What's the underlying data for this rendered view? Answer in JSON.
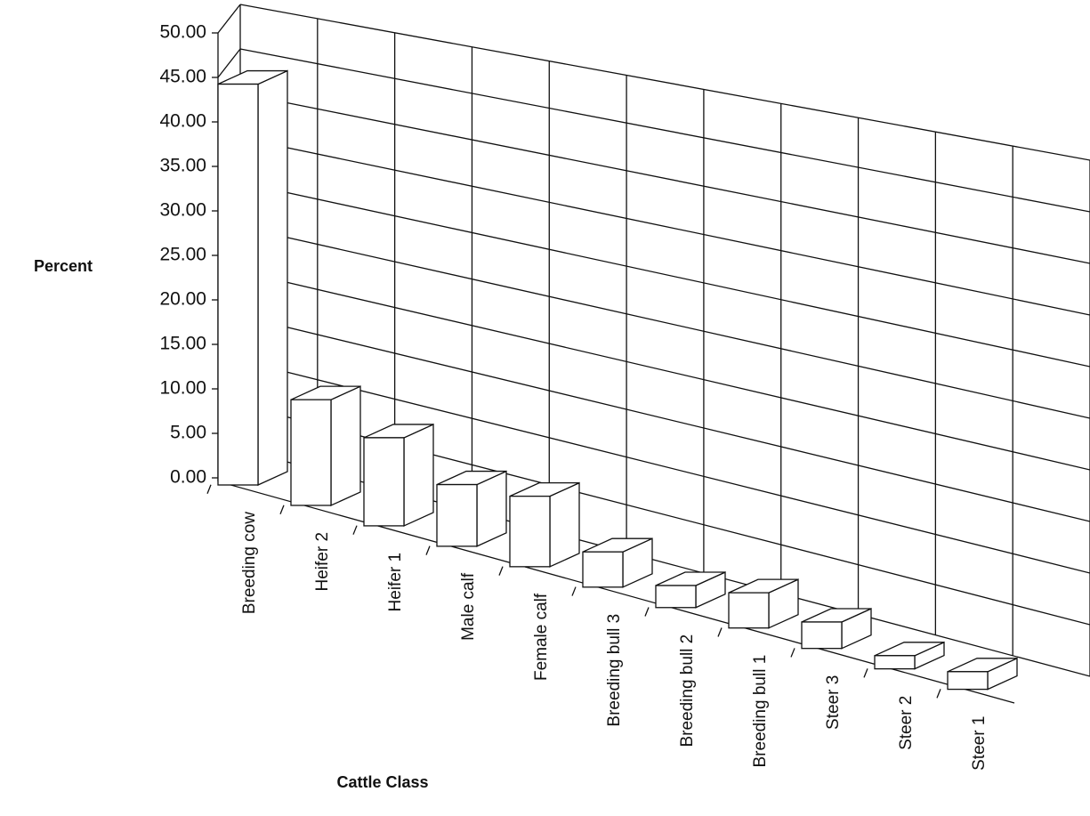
{
  "chart_data": {
    "type": "bar3d",
    "x_label": "Cattle Class",
    "y_label": "Percent",
    "categories": [
      "Breeding cow",
      "Heifer 2",
      "Heifer 1",
      "Male calf",
      "Female calf",
      "Breeding bull 3",
      "Breeding bull 2",
      "Breeding bull 1",
      "Steer 3",
      "Steer 2",
      "Steer 1"
    ],
    "values": [
      45.5,
      12,
      10,
      7,
      8,
      4,
      2.5,
      4,
      3,
      1.5,
      2
    ],
    "color": "#ffffff",
    "ylim": [
      0,
      50
    ],
    "yticks": [
      {
        "value": 0,
        "label": "0.00"
      },
      {
        "value": 5,
        "label": "5.00"
      },
      {
        "value": 10,
        "label": "10.00"
      },
      {
        "value": 15,
        "label": "15.00"
      },
      {
        "value": 20,
        "label": "20.00"
      },
      {
        "value": 25,
        "label": "25.00"
      },
      {
        "value": 30,
        "label": "30.00"
      },
      {
        "value": 35,
        "label": "35.00"
      },
      {
        "value": 40,
        "label": "40.00"
      },
      {
        "value": 45,
        "label": "45.00"
      },
      {
        "value": 50,
        "label": "50.00"
      }
    ],
    "grid": true
  }
}
